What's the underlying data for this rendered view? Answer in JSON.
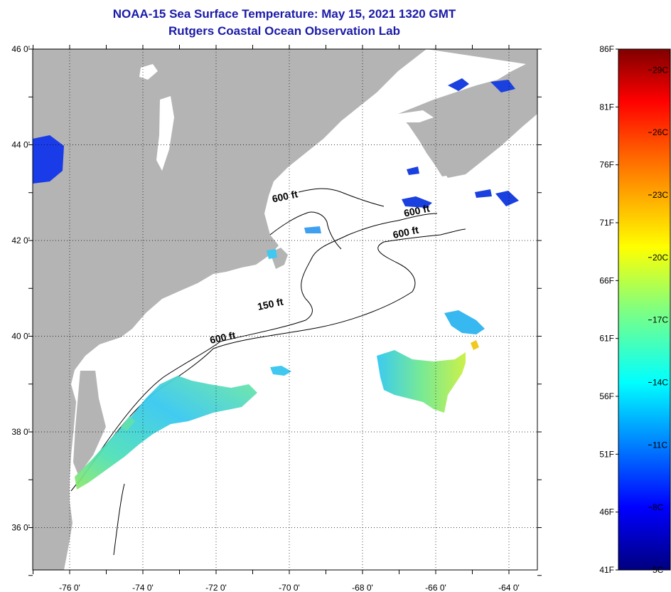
{
  "title_line1": "NOAA-15 Sea Surface Temperature:  May 15, 2021 1320 GMT",
  "title_line2": "Rutgers Coastal Ocean Observation Lab",
  "map": {
    "lat_labels": [
      {
        "lat": 46,
        "text": "46 0'"
      },
      {
        "lat": 44,
        "text": "44 0'"
      },
      {
        "lat": 42,
        "text": "42 0'"
      },
      {
        "lat": 40,
        "text": "40 0'"
      },
      {
        "lat": 38,
        "text": "38 0'"
      },
      {
        "lat": 36,
        "text": "36 0'"
      }
    ],
    "lon_labels": [
      {
        "lon": -76,
        "text": "-76 0'"
      },
      {
        "lon": -74,
        "text": "-74 0'"
      },
      {
        "lon": -72,
        "text": "-72 0'"
      },
      {
        "lon": -70,
        "text": "-70 0'"
      },
      {
        "lon": -68,
        "text": "-68 0'"
      },
      {
        "lon": -66,
        "text": "-66 0'"
      },
      {
        "lon": -64,
        "text": "-64 0'"
      }
    ],
    "contour_labels": [
      {
        "text": "600 ft",
        "lon": -70.1,
        "lat": 42.85
      },
      {
        "text": "600 ft",
        "lon": -66.5,
        "lat": 42.55
      },
      {
        "text": "600 ft",
        "lon": -66.8,
        "lat": 42.1
      },
      {
        "text": "150 ft",
        "lon": -70.5,
        "lat": 40.6
      },
      {
        "text": "600 ft",
        "lon": -71.8,
        "lat": 39.9
      }
    ],
    "land_color": "#b4b4b4",
    "ocean_color": "#ffffff"
  },
  "colorbar": {
    "f_labels": [
      "86F",
      "81F",
      "76F",
      "71F",
      "66F",
      "61F",
      "56F",
      "51F",
      "46F",
      "41F"
    ],
    "c_labels": [
      "29C",
      "26C",
      "23C",
      "20C",
      "17C",
      "14C",
      "11C",
      "8C",
      "5C"
    ],
    "f_range": [
      41,
      86
    ],
    "colors": [
      "#00007f",
      "#0000ff",
      "#0080ff",
      "#00ffff",
      "#80ff80",
      "#ffff00",
      "#ff8000",
      "#ff0000",
      "#7f0000"
    ]
  }
}
